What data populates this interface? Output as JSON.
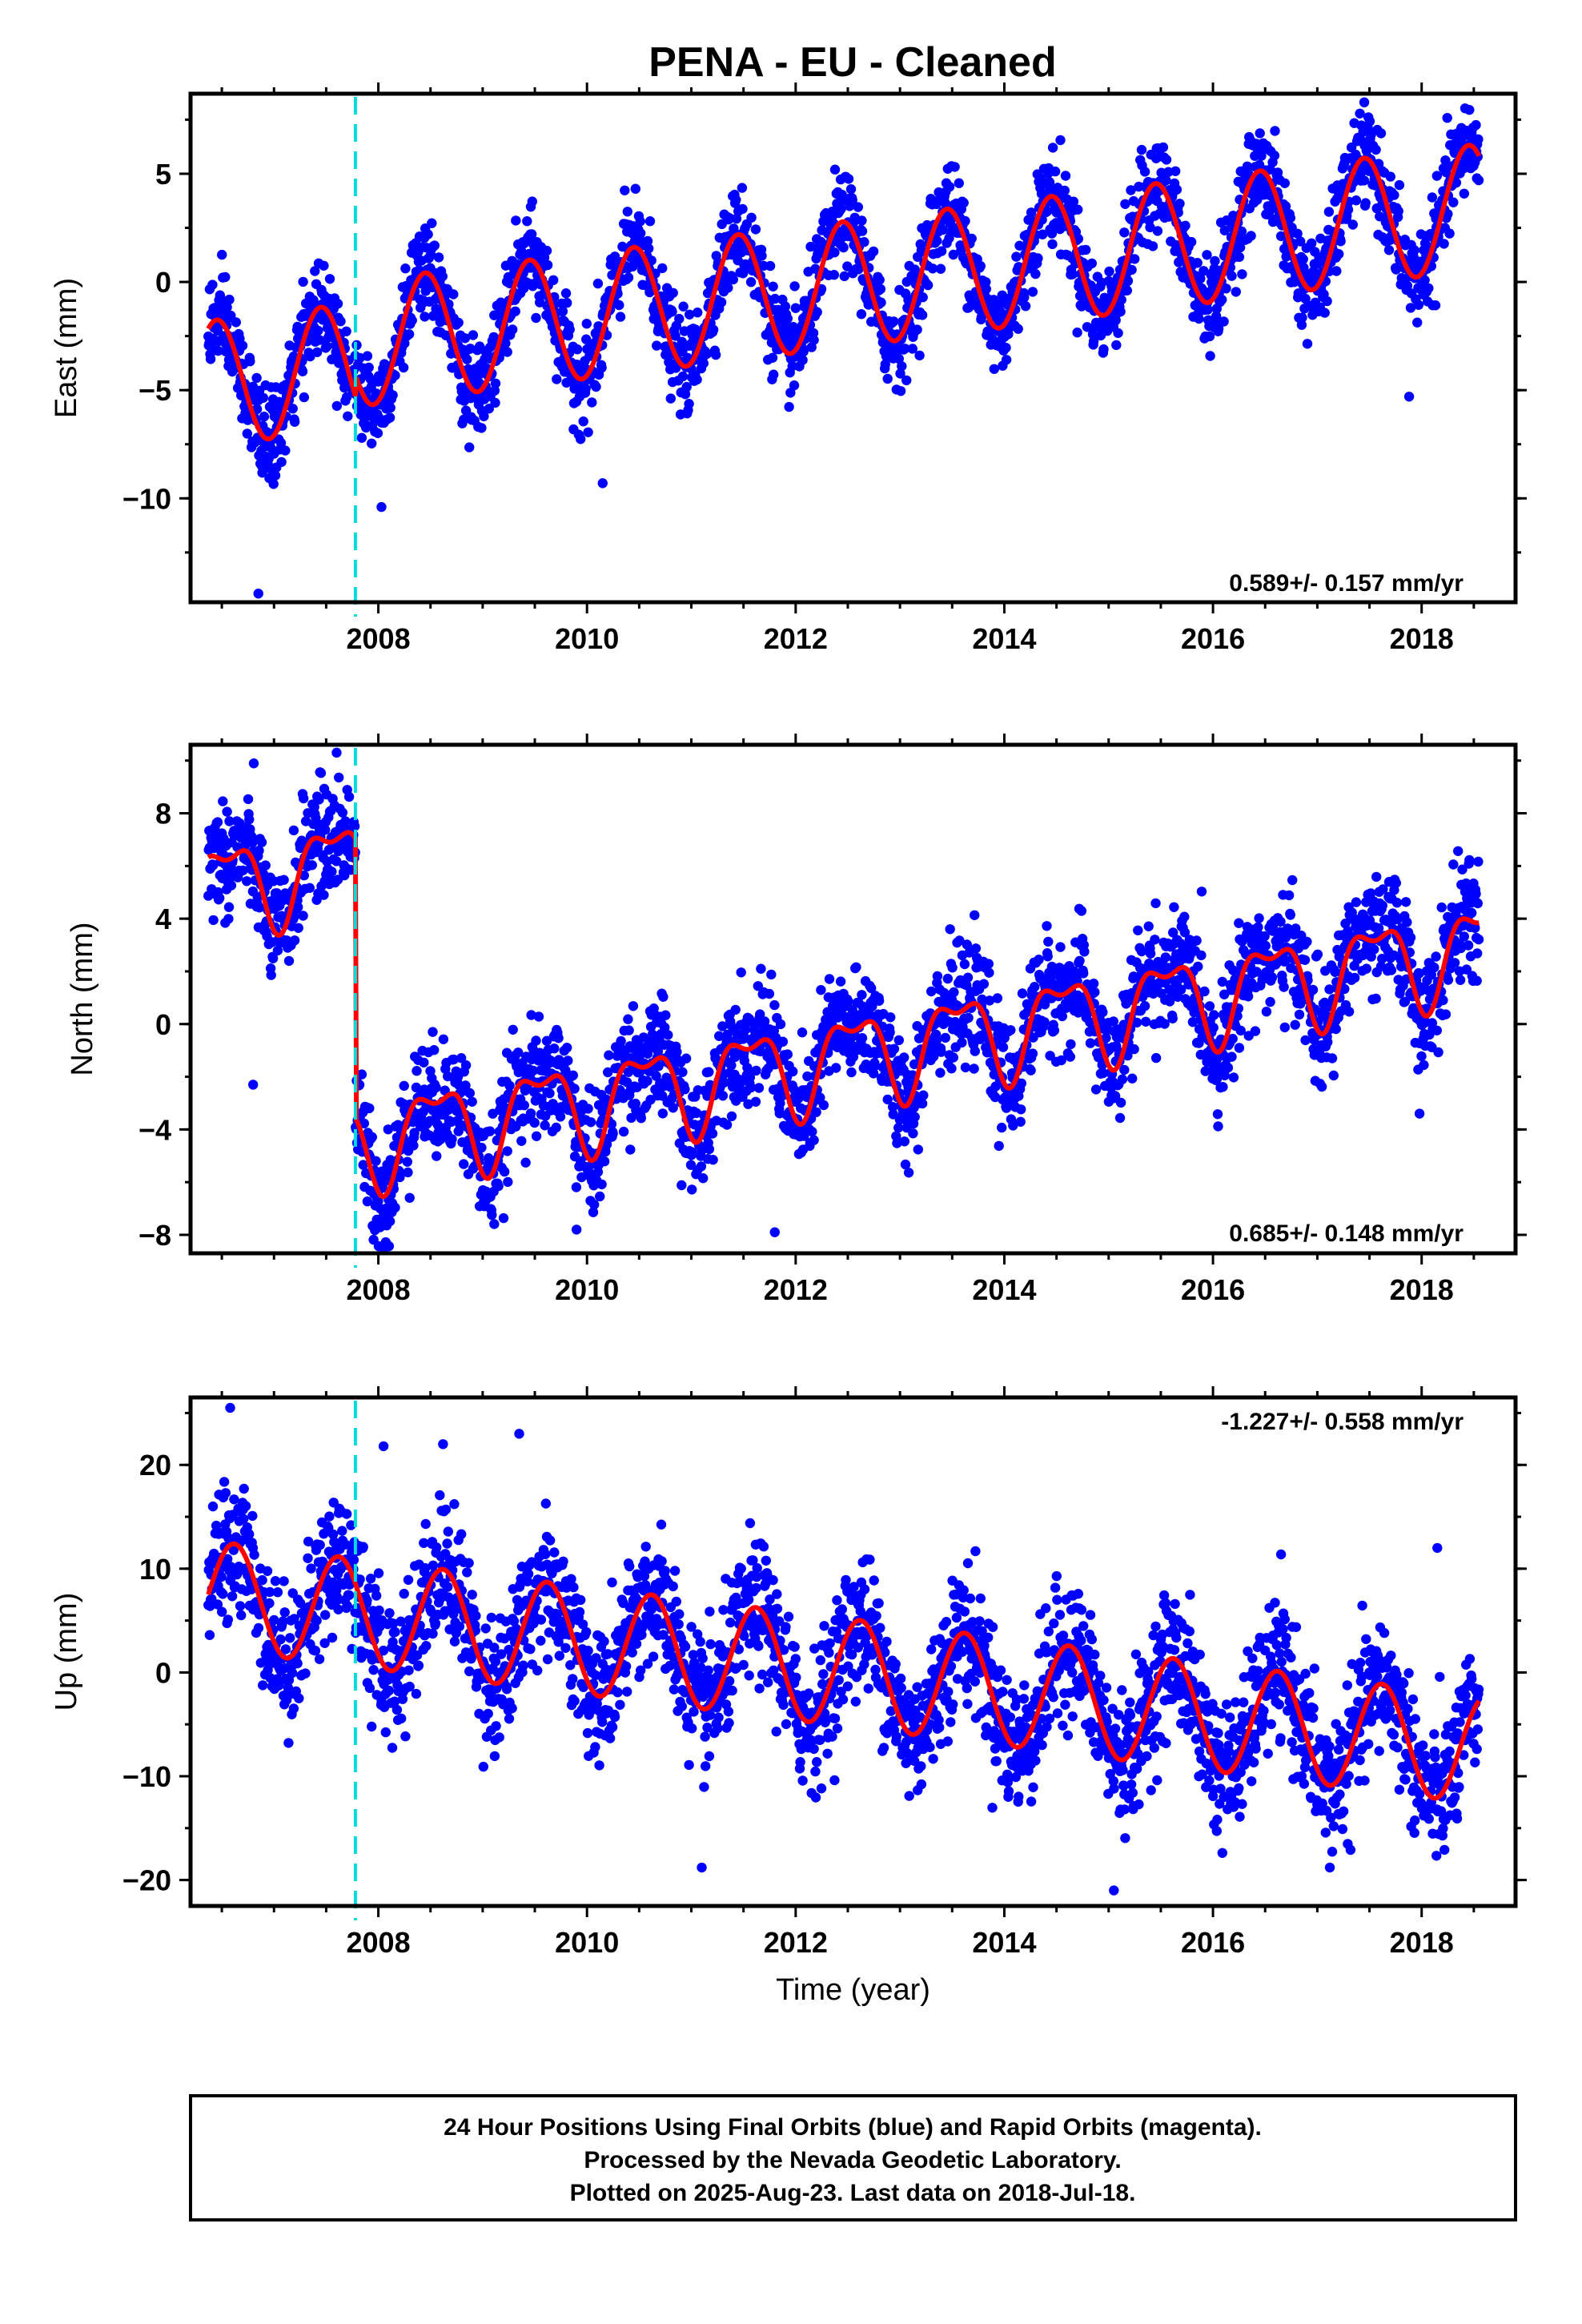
{
  "title": "PENA  - EU - Cleaned",
  "footer": {
    "line1": "24 Hour Positions Using Final Orbits (blue) and Rapid Orbits (magenta).",
    "line2": "Processed by the Nevada Geodetic Laboratory.",
    "line3": "Plotted on 2025-Aug-23. Last data on 2018-Jul-18."
  },
  "colors": {
    "points": "#0000ff",
    "fit": "#ff0000",
    "marker": "#00dcdc",
    "frame": "#000000"
  },
  "chart_data": [
    {
      "type": "scatter",
      "ylabel": "East (mm)",
      "xlabel": "",
      "rate_text": "0.589+/- 0.157 mm/yr",
      "xlim": [
        2006.2,
        2018.9
      ],
      "ylim": [
        -14.8,
        8.7
      ],
      "xticks": [
        2008,
        2010,
        2012,
        2014,
        2016,
        2018
      ],
      "xtick_labels": [
        "2008",
        "2010",
        "2012",
        "2014",
        "2016",
        "2018"
      ],
      "yticks": [
        -10,
        -5,
        0,
        5
      ],
      "ytick_labels": [
        "−10",
        "−5",
        "0",
        "5"
      ],
      "event_line_x": 2007.78,
      "fit_model": {
        "t_start": 2006.37,
        "t_end": 2018.55,
        "t_ref": 2006.37,
        "offset": -4.7,
        "rate": 0.589,
        "amplitude": 2.9,
        "phase_year": 2006.45,
        "step_at": 2007.78,
        "step_value": 1.0
      },
      "notable_outliers": [
        {
          "x": 2006.85,
          "y": -14.4
        },
        {
          "x": 2008.03,
          "y": -10.4
        },
        {
          "x": 2010.15,
          "y": -9.3
        },
        {
          "x": 2017.88,
          "y": -5.3
        },
        {
          "x": 2017.45,
          "y": 8.3
        }
      ]
    },
    {
      "type": "scatter",
      "ylabel": "North (mm)",
      "xlabel": "",
      "rate_text": "0.685+/- 0.148 mm/yr",
      "xlim": [
        2006.2,
        2018.9
      ],
      "ylim": [
        -8.7,
        10.6
      ],
      "xticks": [
        2008,
        2010,
        2012,
        2014,
        2016,
        2018
      ],
      "xtick_labels": [
        "2008",
        "2010",
        "2012",
        "2014",
        "2016",
        "2018"
      ],
      "yticks": [
        -8,
        -4,
        0,
        4,
        8
      ],
      "ytick_labels": [
        "−8",
        "−4",
        "0",
        "4",
        "8"
      ],
      "event_line_x": 2007.78,
      "fit_model": {
        "t_start": 2006.37,
        "t_end": 2018.55,
        "t_ref": 2006.37,
        "offset": 5.2,
        "rate": 0.685,
        "amplitude": 1.6,
        "phase_year": 2006.55,
        "step_at": 2007.78,
        "step_value": -10.6
      },
      "notable_outliers": [
        {
          "x": 2007.6,
          "y": 10.3
        },
        {
          "x": 2006.8,
          "y": -2.3
        },
        {
          "x": 2009.9,
          "y": -7.8
        },
        {
          "x": 2011.8,
          "y": -7.9
        },
        {
          "x": 2017.98,
          "y": -3.4
        }
      ]
    },
    {
      "type": "scatter",
      "ylabel": "Up (mm)",
      "xlabel": "Time (year)",
      "rate_text": "-1.227+/- 0.558 mm/yr",
      "xlim": [
        2006.2,
        2018.9
      ],
      "ylim": [
        -22.5,
        26.5
      ],
      "xticks": [
        2008,
        2010,
        2012,
        2014,
        2016,
        2018
      ],
      "xtick_labels": [
        "2008",
        "2010",
        "2012",
        "2014",
        "2016",
        "2018"
      ],
      "yticks": [
        -20,
        -10,
        0,
        10,
        20
      ],
      "ytick_labels": [
        "−20",
        "−10",
        "0",
        "10",
        "20"
      ],
      "event_line_x": 2007.78,
      "fit_model": {
        "t_start": 2006.37,
        "t_end": 2018.55,
        "t_ref": 2006.37,
        "offset": 7.5,
        "rate": -1.227,
        "amplitude": 5.2,
        "phase_year": 2006.62,
        "step_at": 2007.78,
        "step_value": 0.0
      },
      "notable_outliers": [
        {
          "x": 2006.58,
          "y": 25.5
        },
        {
          "x": 2008.05,
          "y": 21.8
        },
        {
          "x": 2008.62,
          "y": 22.0
        },
        {
          "x": 2009.35,
          "y": 23.0
        },
        {
          "x": 2011.1,
          "y": -18.8
        },
        {
          "x": 2015.05,
          "y": -21.0
        },
        {
          "x": 2017.12,
          "y": -18.8
        },
        {
          "x": 2018.15,
          "y": 12.0
        }
      ]
    }
  ]
}
